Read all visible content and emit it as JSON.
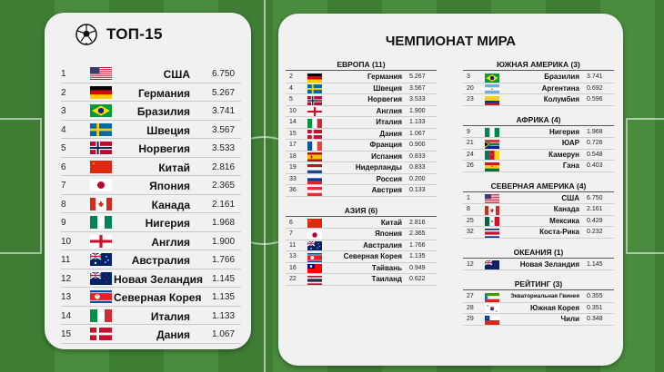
{
  "top15": {
    "title": "ТОП-15",
    "rows": [
      {
        "rank": "1",
        "name": "США",
        "score": "6.750",
        "flag": "usa"
      },
      {
        "rank": "2",
        "name": "Германия",
        "score": "5.267",
        "flag": "germany"
      },
      {
        "rank": "3",
        "name": "Бразилия",
        "score": "3.741",
        "flag": "brazil"
      },
      {
        "rank": "4",
        "name": "Швеция",
        "score": "3.567",
        "flag": "sweden"
      },
      {
        "rank": "5",
        "name": "Норвегия",
        "score": "3.533",
        "flag": "norway"
      },
      {
        "rank": "6",
        "name": "Китай",
        "score": "2.816",
        "flag": "china"
      },
      {
        "rank": "7",
        "name": "Япония",
        "score": "2.365",
        "flag": "japan"
      },
      {
        "rank": "8",
        "name": "Канада",
        "score": "2.161",
        "flag": "canada"
      },
      {
        "rank": "9",
        "name": "Нигерия",
        "score": "1.968",
        "flag": "nigeria"
      },
      {
        "rank": "10",
        "name": "Англия",
        "score": "1.900",
        "flag": "england"
      },
      {
        "rank": "11",
        "name": "Австралия",
        "score": "1.766",
        "flag": "australia"
      },
      {
        "rank": "12",
        "name": "Новая Зеландия",
        "score": "1.145",
        "flag": "newzealand"
      },
      {
        "rank": "13",
        "name": "Северная Корея",
        "score": "1.135",
        "flag": "northkorea"
      },
      {
        "rank": "14",
        "name": "Италия",
        "score": "1.133",
        "flag": "italy"
      },
      {
        "rank": "15",
        "name": "Дания",
        "score": "1.067",
        "flag": "denmark"
      }
    ]
  },
  "worldcup": {
    "title": "ЧЕМПИОНАТ МИРА",
    "left_groups": [
      {
        "header": "ЕВРОПА (11)",
        "rows": [
          {
            "rank": "2",
            "name": "Германия",
            "score": "5.267",
            "flag": "germany"
          },
          {
            "rank": "4",
            "name": "Швеция",
            "score": "3.567",
            "flag": "sweden"
          },
          {
            "rank": "5",
            "name": "Норвегия",
            "score": "3.533",
            "flag": "norway"
          },
          {
            "rank": "10",
            "name": "Англия",
            "score": "1.900",
            "flag": "england"
          },
          {
            "rank": "14",
            "name": "Италия",
            "score": "1.133",
            "flag": "italy"
          },
          {
            "rank": "15",
            "name": "Дания",
            "score": "1.067",
            "flag": "denmark"
          },
          {
            "rank": "17",
            "name": "Франция",
            "score": "0.900",
            "flag": "france"
          },
          {
            "rank": "18",
            "name": "Испания",
            "score": "0.833",
            "flag": "spain"
          },
          {
            "rank": "19",
            "name": "Нидерланды",
            "score": "0.833",
            "flag": "netherlands"
          },
          {
            "rank": "33",
            "name": "Россия",
            "score": "0.200",
            "flag": "russia"
          },
          {
            "rank": "36",
            "name": "Австрия",
            "score": "0.133",
            "flag": "austria"
          }
        ]
      },
      {
        "header": "АЗИЯ (6)",
        "rows": [
          {
            "rank": "6",
            "name": "Китай",
            "score": "2.816",
            "flag": "china"
          },
          {
            "rank": "7",
            "name": "Япония",
            "score": "2.365",
            "flag": "japan"
          },
          {
            "rank": "11",
            "name": "Австралия",
            "score": "1.766",
            "flag": "australia"
          },
          {
            "rank": "13",
            "name": "Северная Корея",
            "score": "1.135",
            "flag": "northkorea"
          },
          {
            "rank": "16",
            "name": "Тайвань",
            "score": "0.949",
            "flag": "taiwan"
          },
          {
            "rank": "22",
            "name": "Таиланд",
            "score": "0.622",
            "flag": "thailand"
          }
        ]
      }
    ],
    "right_groups": [
      {
        "header": "ЮЖНАЯ АМЕРИКА (3)",
        "rows": [
          {
            "rank": "3",
            "name": "Бразилия",
            "score": "3.741",
            "flag": "brazil"
          },
          {
            "rank": "20",
            "name": "Аргентина",
            "score": "0.692",
            "flag": "argentina"
          },
          {
            "rank": "23",
            "name": "Колумбия",
            "score": "0.596",
            "flag": "colombia"
          }
        ]
      },
      {
        "header": "АФРИКА (4)",
        "rows": [
          {
            "rank": "9",
            "name": "Нигерия",
            "score": "1.968",
            "flag": "nigeria"
          },
          {
            "rank": "21",
            "name": "ЮАР",
            "score": "0.726",
            "flag": "southafrica"
          },
          {
            "rank": "24",
            "name": "Камерун",
            "score": "0.548",
            "flag": "cameroon"
          },
          {
            "rank": "26",
            "name": "Гана",
            "score": "0.403",
            "flag": "ghana"
          }
        ]
      },
      {
        "header": "СЕВЕРНАЯ АМЕРИКА (4)",
        "rows": [
          {
            "rank": "1",
            "name": "США",
            "score": "6.750",
            "flag": "usa"
          },
          {
            "rank": "8",
            "name": "Канада",
            "score": "2.161",
            "flag": "canada"
          },
          {
            "rank": "25",
            "name": "Мексика",
            "score": "0.429",
            "flag": "mexico"
          },
          {
            "rank": "32",
            "name": "Коста-Рика",
            "score": "0.232",
            "flag": "costarica"
          }
        ]
      },
      {
        "header": "ОКЕАНИЯ (1)",
        "rows": [
          {
            "rank": "12",
            "name": "Новая Зеландия",
            "score": "1.145",
            "flag": "newzealand"
          }
        ]
      },
      {
        "header": "РЕЙТИНГ (3)",
        "rows": [
          {
            "rank": "27",
            "name": "Экваториальная Гвинея",
            "score": "0.355",
            "flag": "eqguinea",
            "small": true
          },
          {
            "rank": "28",
            "name": "Южная Корея",
            "score": "0.351",
            "flag": "southkorea"
          },
          {
            "rank": "29",
            "name": "Чили",
            "score": "0.348",
            "flag": "chile"
          }
        ]
      }
    ]
  },
  "colors": {
    "card_bg": "#f1f1f1",
    "pitch_green": "#3f7d35",
    "text": "#111111"
  }
}
